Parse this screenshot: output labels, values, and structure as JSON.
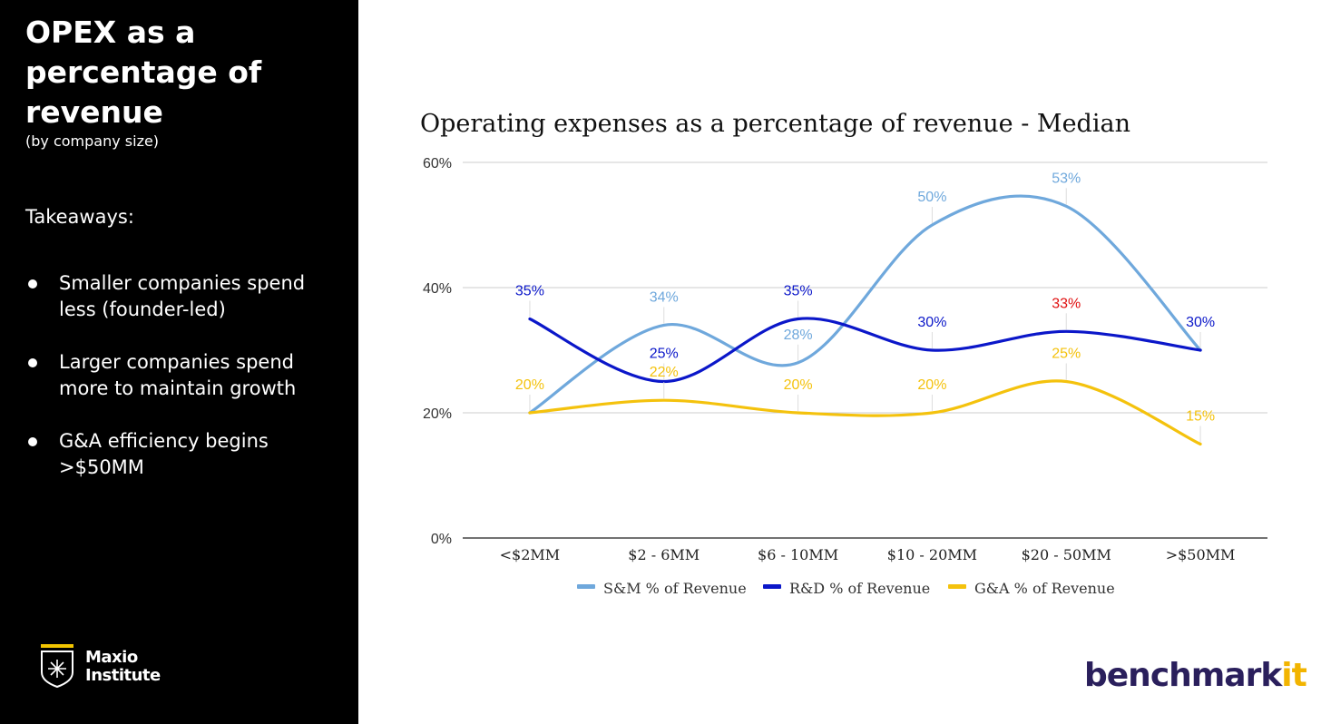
{
  "sidebar": {
    "title": "OPEX as a percentage of revenue",
    "subtitle": "(by company size)",
    "takeaways_heading": "Takeaways:",
    "takeaways": [
      "Smaller companies spend less (founder-led)",
      "Larger companies spend more to maintain growth",
      "G&A efficiency begins >$50MM"
    ],
    "logo_line1": "Maxio",
    "logo_line2": "Institute"
  },
  "brand": {
    "logo_main": "benchmark",
    "logo_accent": "it",
    "colors": {
      "panel": "#000000",
      "benchmark": "#2a1f5c",
      "accent": "#f2b400"
    }
  },
  "chart_data": {
    "type": "line",
    "title": "Operating expenses as a percentage of revenue - Median",
    "categories": [
      "<$2MM",
      "$2 - 6MM",
      "$6 - 10MM",
      "$10 - 20MM",
      "$20 - 50MM",
      ">$50MM"
    ],
    "ylim": [
      0,
      60
    ],
    "yticks": [
      "0%",
      "20%",
      "40%",
      "60%"
    ],
    "grid": true,
    "legend_position": "bottom",
    "series": [
      {
        "name": "S&M % of Revenue",
        "color": "#6fa8dc",
        "values": [
          20,
          34,
          28,
          50,
          53,
          30
        ],
        "labels": [
          "",
          "34%",
          "28%",
          "50%",
          "53%",
          ""
        ]
      },
      {
        "name": "R&D % of Revenue",
        "color": "#0b17c9",
        "values": [
          35,
          25,
          35,
          30,
          33,
          30
        ],
        "labels": [
          "35%",
          "25%",
          "35%",
          "30%",
          "33%",
          "30%"
        ]
      },
      {
        "name": "G&A % of Revenue",
        "color": "#f4c20d",
        "values": [
          20,
          22,
          20,
          20,
          25,
          15
        ],
        "labels": [
          "20%",
          "22%",
          "20%",
          "20%",
          "25%",
          "15%"
        ]
      }
    ],
    "highlight_label": {
      "series": 1,
      "index": 4,
      "color": "#e01010"
    }
  }
}
